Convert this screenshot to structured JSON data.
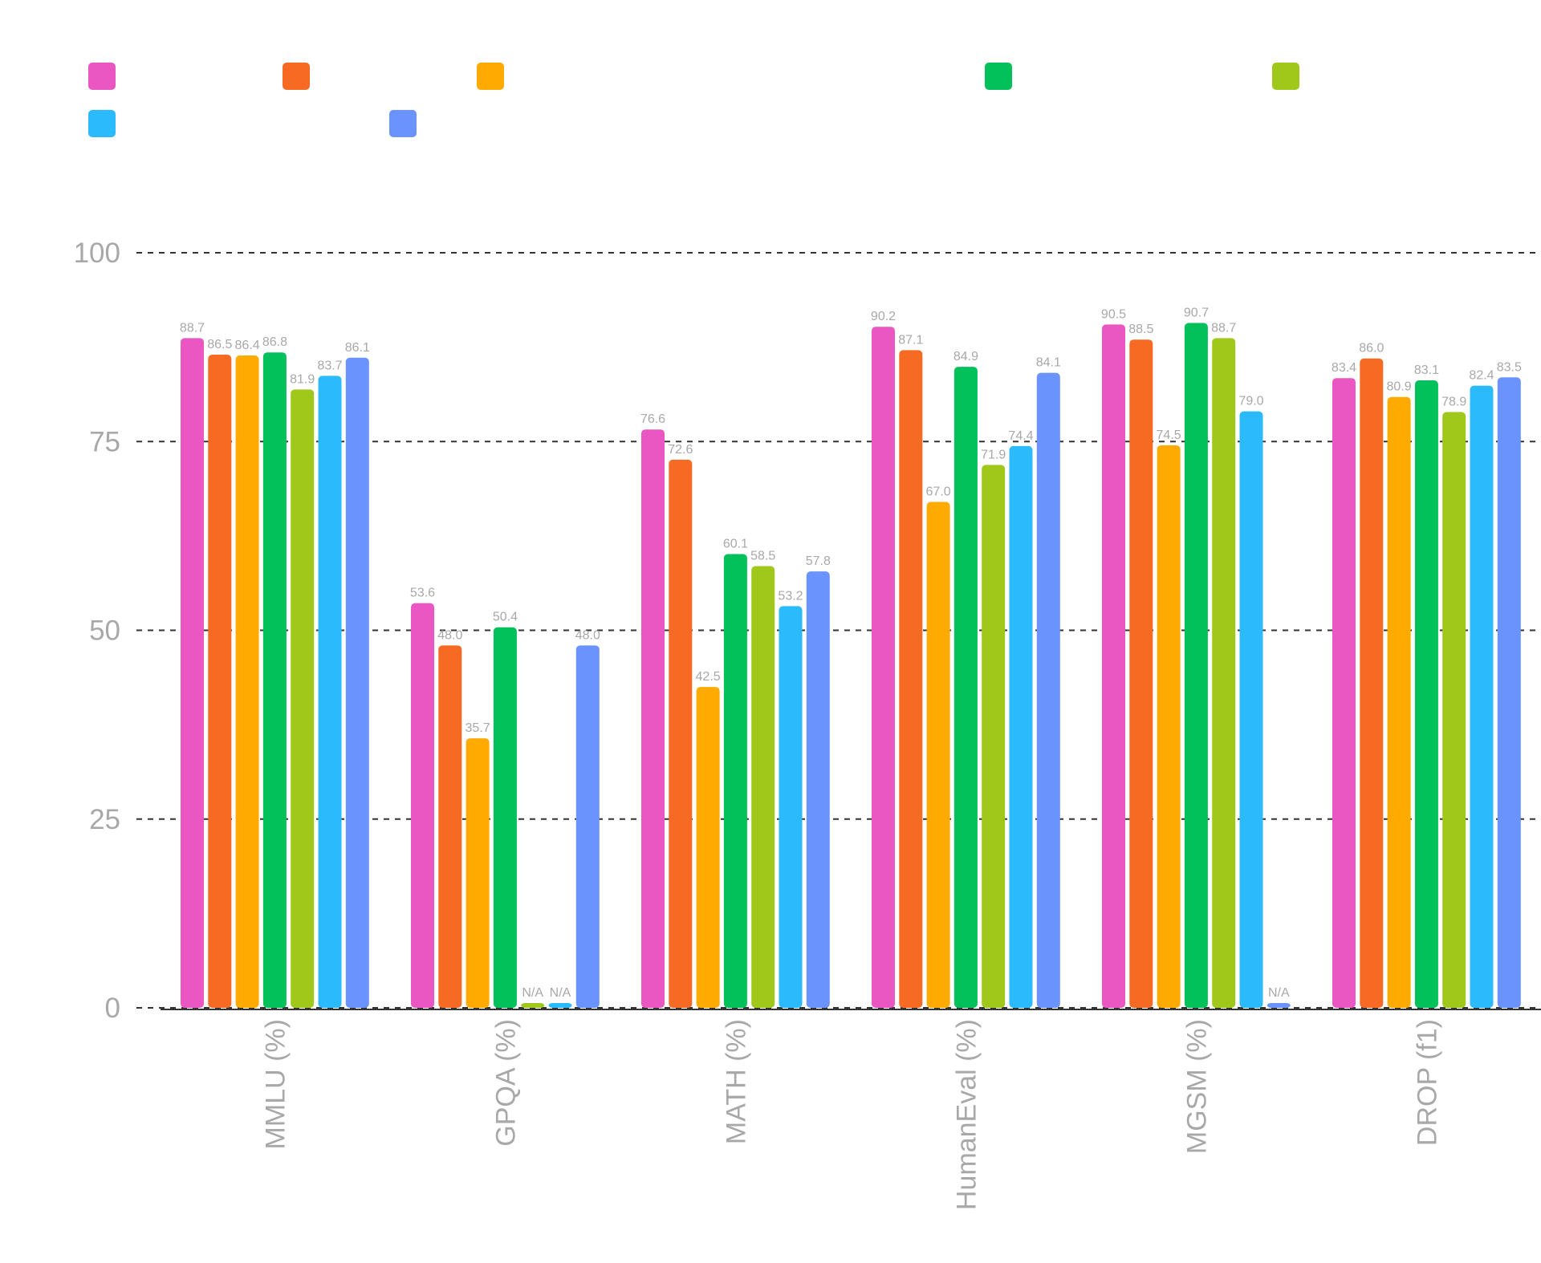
{
  "chart_data": {
    "type": "bar",
    "categories": [
      "MMLU (%)",
      "GPQA (%)",
      "MATH (%)",
      "HumanEval (%)",
      "MGSM (%)",
      "DROP (f1)"
    ],
    "series": [
      {
        "color": "#EB57C2",
        "values": [
          88.7,
          53.6,
          76.6,
          90.2,
          90.5,
          83.4
        ],
        "labels": [
          "88.7",
          "53.6",
          "76.6",
          "90.2",
          "90.5",
          "83.4"
        ]
      },
      {
        "color": "#F66A24",
        "values": [
          86.5,
          48.0,
          72.6,
          87.1,
          88.5,
          86.0
        ],
        "labels": [
          "86.5",
          "48.0",
          "72.6",
          "87.1",
          "88.5",
          "86.0"
        ]
      },
      {
        "color": "#FFAA00",
        "values": [
          86.4,
          35.7,
          42.5,
          67.0,
          74.5,
          80.9
        ],
        "labels": [
          "86.4",
          "35.7",
          "42.5",
          "67.0",
          "74.5",
          "80.9"
        ]
      },
      {
        "color": "#02C05A",
        "values": [
          86.8,
          50.4,
          60.1,
          84.9,
          90.7,
          83.1
        ],
        "labels": [
          "86.8",
          "50.4",
          "60.1",
          "84.9",
          "90.7",
          "83.1"
        ]
      },
      {
        "color": "#9FC81B",
        "values": [
          81.9,
          null,
          58.5,
          71.9,
          88.7,
          78.9
        ],
        "labels": [
          "81.9",
          "N/A",
          "58.5",
          "71.9",
          "88.7",
          "78.9"
        ]
      },
      {
        "color": "#2BBAFB",
        "values": [
          83.7,
          null,
          53.2,
          74.4,
          79.0,
          82.4
        ],
        "labels": [
          "83.7",
          "N/A",
          "53.2",
          "74.4",
          "79.0",
          "82.4"
        ]
      },
      {
        "color": "#6A93FE",
        "values": [
          86.1,
          48.0,
          57.8,
          84.1,
          null,
          83.5
        ],
        "labels": [
          "86.1",
          "48.0",
          "57.8",
          "84.1",
          "N/A",
          "83.5"
        ]
      }
    ],
    "yticks": [
      "0",
      "25",
      "50",
      "75",
      "100"
    ],
    "ylim": [
      0,
      100
    ],
    "grid": true,
    "legend_position": "top-left",
    "colors": {
      "axis_text": "#A8A8A8",
      "grid": "#333333",
      "value_label": "#A8A8A8",
      "axis_line": "#333333"
    }
  }
}
